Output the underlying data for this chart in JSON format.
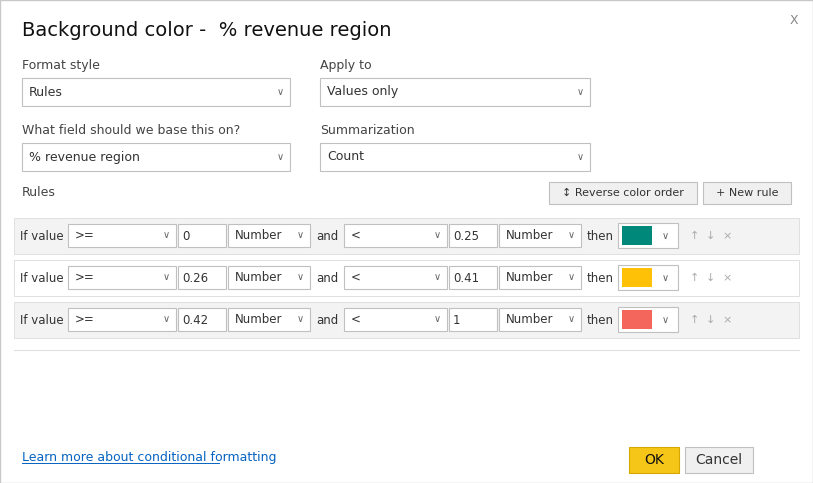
{
  "title": "Background color -  % revenue region",
  "bg_color": "#ffffff",
  "border_color": "#c8c8c8",
  "close_symbol": "X",
  "format_style_label": "Format style",
  "format_style_value": "Rules",
  "apply_to_label": "Apply to",
  "apply_to_value": "Values only",
  "field_label": "What field should we base this on?",
  "field_value": "% revenue region",
  "summarization_label": "Summarization",
  "summarization_value": "Count",
  "rules_label": "Rules",
  "reverse_btn": "↕ Reverse color order",
  "new_rule_btn": "+ New rule",
  "rows": [
    {
      "if_val": "If value",
      "op1": ">=",
      "val1": "0",
      "type1": "Number",
      "and_txt": "and",
      "op2": "<",
      "val2": "0.25",
      "type2": "Number",
      "then": "then",
      "color": "#00897B"
    },
    {
      "if_val": "If value",
      "op1": ">=",
      "val1": "0.26",
      "type1": "Number",
      "and_txt": "and",
      "op2": "<",
      "val2": "0.41",
      "type2": "Number",
      "then": "then",
      "color": "#FFC107"
    },
    {
      "if_val": "If value",
      "op1": ">=",
      "val1": "0.42",
      "type1": "Number",
      "and_txt": "and",
      "op2": "<",
      "val2": "1",
      "type2": "Number",
      "then": "then",
      "color": "#F4665C"
    }
  ],
  "learn_more_text": "Learn more about conditional formatting",
  "learn_more_color": "#0563C1",
  "ok_btn": "OK",
  "ok_bg": "#F5C518",
  "ok_border": "#D4A800",
  "cancel_btn": "Cancel",
  "row_bg_even": "#f3f3f3",
  "row_bg_odd": "#ffffff",
  "input_bg": "#ffffff",
  "input_border": "#c0c0c0",
  "btn_bg": "#f0f0f0",
  "btn_border": "#c0c0c0",
  "text_color": "#333333",
  "label_color": "#444444",
  "arrow_color": "#aaaaaa"
}
